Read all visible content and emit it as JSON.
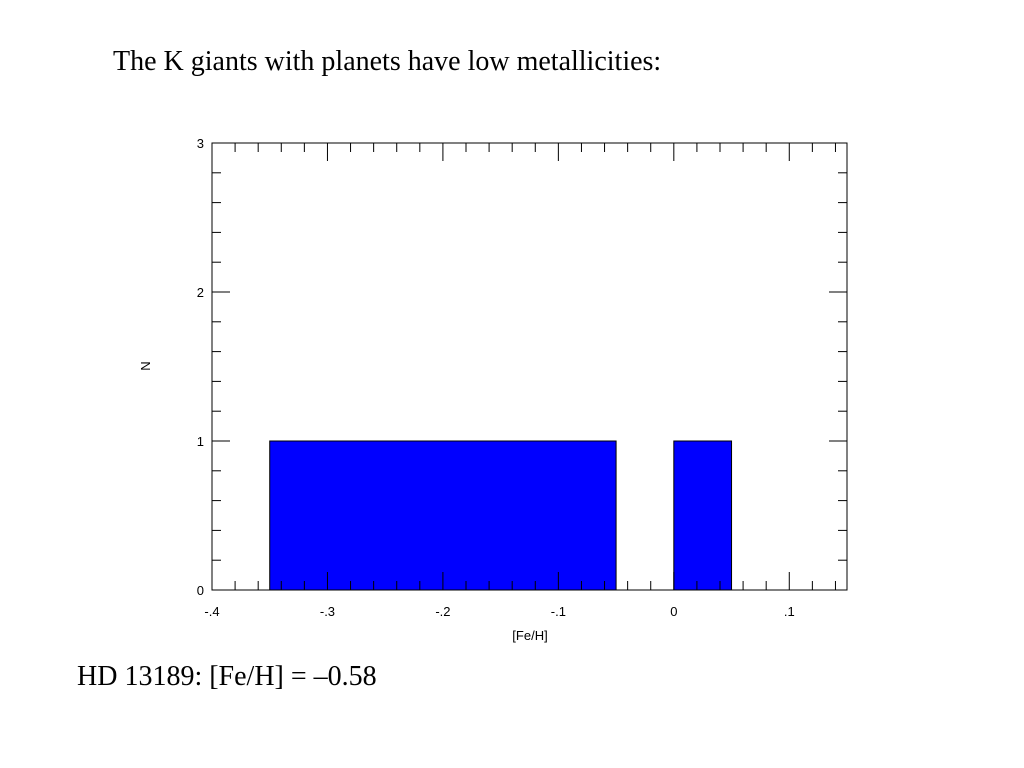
{
  "chart_data": {
    "type": "histogram",
    "title": "The K giants with planets have low metallicities:",
    "annotation": "HD 13189: [Fe/H] = –0.58",
    "xlabel": "[Fe/H]",
    "ylabel": "N",
    "bins": [
      -0.35,
      -0.05,
      0,
      0.05
    ],
    "values": [
      1,
      0,
      1
    ],
    "color": "#0000ff",
    "xlim": [
      -0.4,
      0.15
    ],
    "ylim": [
      0,
      3
    ],
    "xticks": [
      {
        "value": -0.4,
        "label": "-.4"
      },
      {
        "value": -0.3,
        "label": "-.3"
      },
      {
        "value": -0.2,
        "label": "-.2"
      },
      {
        "value": -0.1,
        "label": "-.1"
      },
      0,
      {
        "value": 0.1,
        "label": ".1"
      }
    ],
    "yticks": [
      0,
      1,
      2,
      3
    ],
    "xminorticks": [
      -0.38,
      -0.36,
      -0.34,
      -0.32,
      -0.28,
      -0.26,
      -0.24,
      -0.22,
      -0.18,
      -0.16,
      -0.14,
      -0.12,
      -0.08,
      -0.06,
      -0.04,
      -0.02,
      0.02,
      0.04,
      0.06,
      0.08,
      0.12,
      0.14
    ],
    "yminorticks": [
      0.2,
      0.4,
      0.6,
      0.8,
      1.2,
      1.4,
      1.6,
      1.8,
      2.2,
      2.4,
      2.6,
      2.8
    ],
    "grid": false
  }
}
